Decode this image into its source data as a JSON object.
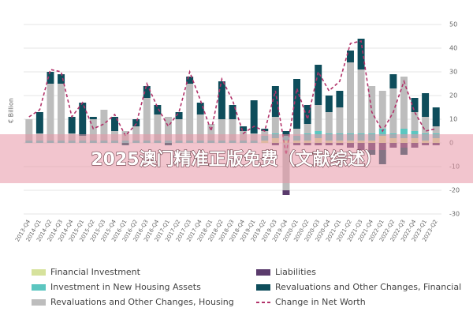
{
  "chart_data": {
    "type": "bar",
    "stacked": true,
    "y_label": "€ Billion",
    "categories": [
      "2013-Q4",
      "2014-Q1",
      "2014-Q2",
      "2014-Q3",
      "2014-Q4",
      "2015-Q1",
      "2015-Q2",
      "2015-Q3",
      "2015-Q4",
      "2016-Q1",
      "2016-Q2",
      "2016-Q3",
      "2016-Q4",
      "2017-Q1",
      "2017-Q2",
      "2017-Q3",
      "2017-Q4",
      "2018-Q1",
      "2018-Q2",
      "2018-Q3",
      "2018-Q4",
      "2019-Q1",
      "2019-Q2",
      "2019-Q3",
      "2019-Q4",
      "2020-Q1",
      "2020-Q2",
      "2020-Q3",
      "2020-Q4",
      "2021-Q1",
      "2021-Q2",
      "2021-Q3",
      "2021-Q4",
      "2022-Q1",
      "2022-Q2",
      "2022-Q3",
      "2022-Q4",
      "2023-Q1",
      "2023-Q2"
    ],
    "series": [
      {
        "name": "Financial Investment",
        "color": "#d6e29c",
        "values": [
          0,
          0,
          0,
          0,
          0,
          0,
          0,
          0,
          0,
          0,
          0,
          0,
          0,
          0,
          0,
          0,
          0,
          0,
          0,
          0,
          0,
          0,
          1,
          2,
          1,
          1,
          1,
          2,
          1,
          1,
          1,
          1,
          1,
          3,
          2,
          2,
          2,
          1,
          2
        ]
      },
      {
        "name": "Investment in New Housing Assets",
        "color": "#5cc6c0",
        "values": [
          1,
          1,
          1,
          1,
          1,
          1,
          1,
          1,
          1,
          1,
          1,
          1,
          1,
          1,
          1,
          1,
          1,
          1,
          1,
          1,
          1,
          1,
          2,
          2,
          2,
          2,
          3,
          3,
          3,
          3,
          3,
          3,
          3,
          3,
          2,
          4,
          3,
          3,
          2
        ]
      },
      {
        "name": "Revaluations and Other Changes, Housing",
        "color": "#bdbdbd",
        "values": [
          9,
          3,
          24,
          24,
          3,
          2,
          9,
          13,
          4,
          4,
          6,
          18,
          11,
          10,
          9,
          24,
          11,
          7,
          9,
          9,
          4,
          3,
          2,
          7,
          -20,
          3,
          4,
          11,
          9,
          11,
          30,
          27,
          20,
          16,
          19,
          22,
          8,
          7,
          3
        ]
      },
      {
        "name": "Liabilities",
        "color": "#5a3b6c",
        "values": [
          0,
          0,
          0,
          0,
          0,
          0,
          0,
          0,
          0,
          0,
          0,
          0,
          0,
          0,
          0,
          0,
          0,
          0,
          0,
          0,
          0,
          0,
          0,
          -1,
          -2,
          -1,
          -1,
          -1,
          -1,
          -1,
          -2,
          -3,
          -3,
          -3,
          -2,
          -2,
          -2,
          -1,
          -1
        ]
      },
      {
        "name": "Revaluations and Other Changes, Financial",
        "color": "#0e4d5b",
        "values": [
          0,
          9,
          5,
          4,
          7,
          14,
          1,
          0,
          6,
          -1,
          3,
          5,
          4,
          -1,
          3,
          3,
          5,
          0,
          16,
          6,
          2,
          14,
          1,
          13,
          2,
          21,
          8,
          17,
          7,
          7,
          5,
          13,
          -2,
          -6,
          6,
          -3,
          6,
          10,
          8
        ]
      },
      {
        "name": "Change in Net Worth",
        "color": "#b2336a",
        "type": "line",
        "values": [
          11,
          14,
          31,
          30,
          11,
          17,
          6,
          8,
          12,
          3,
          8,
          25,
          15,
          7,
          13,
          30,
          18,
          5,
          27,
          18,
          4,
          7,
          5,
          22,
          -5,
          23,
          10,
          30,
          22,
          26,
          42,
          43,
          13,
          5,
          13,
          26,
          13,
          5,
          6
        ]
      }
    ],
    "ylim": [
      -30,
      50
    ],
    "yticks": [
      -30,
      -20,
      -10,
      0,
      10,
      20,
      30,
      40,
      50
    ],
    "grid": true
  },
  "overlay_text": "2025澳门精准正版免费（文献综述）"
}
